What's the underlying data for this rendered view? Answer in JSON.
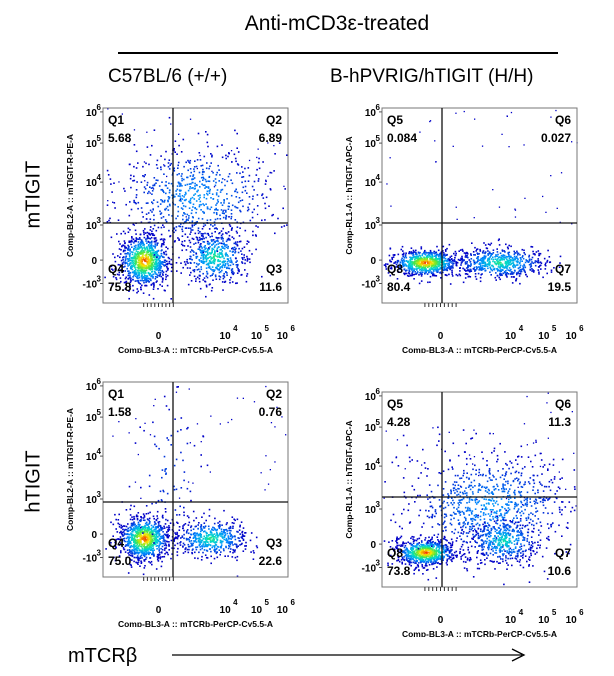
{
  "header": {
    "title": "Anti-mCD3ε-treated",
    "col_left": "C57BL/6 (+/+)",
    "col_right": "B-hPVRIG/hTIGIT  (H/H)"
  },
  "rows": {
    "top": "mTIGIT",
    "bottom": "hTIGIT"
  },
  "footer": {
    "x_label": "mTCRβ"
  },
  "chart_data": [
    {
      "type": "scatter",
      "panel": "top-left",
      "ylabel": "Comp-BL2-A :: mTIGIT-R-PE-A",
      "xlabel": "Comp-BL3-A :: mTCRb-PerCP-Cy5.5-A",
      "x_ticks": [
        "0",
        "10",
        "10",
        "10"
      ],
      "x_tick_exps": [
        "",
        "4",
        "5",
        "6"
      ],
      "y_ticks": [
        "-10",
        "0",
        "10",
        "10",
        "10",
        "10"
      ],
      "y_tick_exps": [
        "3",
        "",
        "3",
        "4",
        "5",
        "6"
      ],
      "quadrants": [
        {
          "name": "Q1",
          "value": "5.68"
        },
        {
          "name": "Q2",
          "value": "6.89"
        },
        {
          "name": "Q3",
          "value": "11.6"
        },
        {
          "name": "Q4",
          "value": "75.8"
        }
      ]
    },
    {
      "type": "scatter",
      "panel": "top-right",
      "ylabel": "Comp-RL1-A :: hTIGIT-APC-A",
      "xlabel": "Comp-BL3-A :: mTCRb-PerCP-Cy5.5-A",
      "x_ticks": [
        "0",
        "10",
        "10",
        "10"
      ],
      "x_tick_exps": [
        "",
        "4",
        "5",
        "6"
      ],
      "y_ticks": [
        "-10",
        "0",
        "10",
        "10",
        "10",
        "10"
      ],
      "y_tick_exps": [
        "3",
        "",
        "3",
        "4",
        "5",
        "6"
      ],
      "quadrants": [
        {
          "name": "Q5",
          "value": "0.084"
        },
        {
          "name": "Q6",
          "value": "0.027"
        },
        {
          "name": "Q7",
          "value": "19.5"
        },
        {
          "name": "Q8",
          "value": "80.4"
        }
      ]
    },
    {
      "type": "scatter",
      "panel": "bottom-left",
      "ylabel": "Comp-BL2-A :: mTIGIT-R-PE-A",
      "xlabel": "Comp-BL3-A :: mTCRb-PerCP-Cy5.5-A",
      "x_ticks": [
        "0",
        "10",
        "10",
        "10"
      ],
      "x_tick_exps": [
        "",
        "4",
        "5",
        "6"
      ],
      "y_ticks": [
        "-10",
        "0",
        "10",
        "10",
        "10",
        "10"
      ],
      "y_tick_exps": [
        "3",
        "",
        "3",
        "4",
        "5",
        "6"
      ],
      "quadrants": [
        {
          "name": "Q1",
          "value": "1.58"
        },
        {
          "name": "Q2",
          "value": "0.76"
        },
        {
          "name": "Q3",
          "value": "22.6"
        },
        {
          "name": "Q4",
          "value": "75.0"
        }
      ]
    },
    {
      "type": "scatter",
      "panel": "bottom-right",
      "ylabel": "Comp-RL1-A :: hTIGIT-APC-A",
      "xlabel": "Comp-BL3-A :: mTCRb-PerCP-Cy5.5-A",
      "x_ticks": [
        "0",
        "10",
        "10",
        "10"
      ],
      "x_tick_exps": [
        "",
        "4",
        "5",
        "6"
      ],
      "y_ticks": [
        "-10",
        "0",
        "10",
        "10",
        "10",
        "10"
      ],
      "y_tick_exps": [
        "3",
        "",
        "3",
        "4",
        "5",
        "6"
      ],
      "quadrants": [
        {
          "name": "Q5",
          "value": "4.28"
        },
        {
          "name": "Q6",
          "value": "11.3"
        },
        {
          "name": "Q7",
          "value": "10.6"
        },
        {
          "name": "Q8",
          "value": "73.8"
        }
      ]
    }
  ]
}
